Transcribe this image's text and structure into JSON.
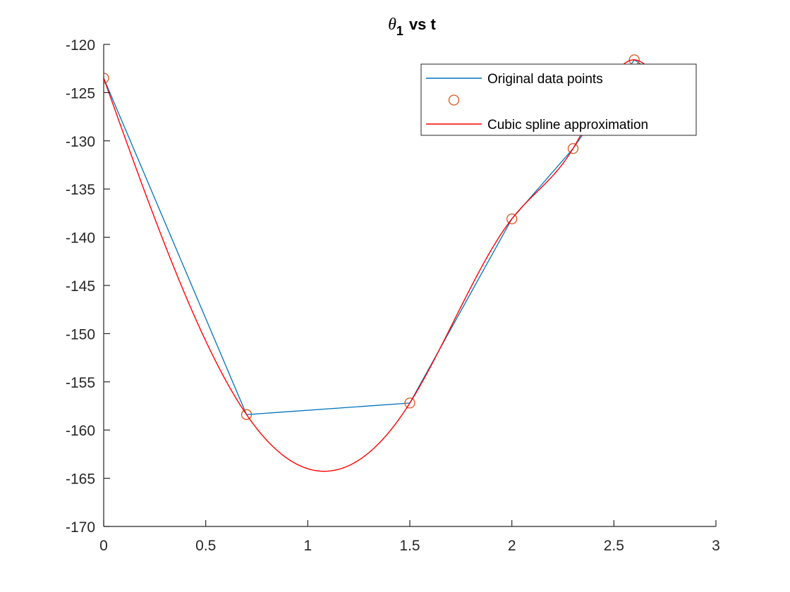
{
  "chart_data": {
    "type": "line",
    "title": {
      "symbol": "θ",
      "subscript": "1",
      "rest": "vs t"
    },
    "xlabel": "",
    "ylabel": "",
    "xlim": [
      0,
      3
    ],
    "ylim": [
      -170,
      -120
    ],
    "xticks": [
      0,
      0.5,
      1,
      1.5,
      2,
      2.5,
      3
    ],
    "yticks": [
      -120,
      -125,
      -130,
      -135,
      -140,
      -145,
      -150,
      -155,
      -160,
      -165,
      -170
    ],
    "xtick_labels": [
      "0",
      "0.5",
      "1",
      "1.5",
      "2",
      "2.5",
      "3"
    ],
    "ytick_labels": [
      "-120",
      "-125",
      "-130",
      "-135",
      "-140",
      "-145",
      "-150",
      "-155",
      "-160",
      "-165",
      "-170"
    ],
    "grid": false,
    "legend_position": "top-right",
    "series": [
      {
        "name": "Original data points",
        "style": "line",
        "color": "#0072BD",
        "x": [
          0,
          0.7,
          1.5,
          2.0,
          2.3,
          2.6,
          2.7
        ],
        "y": [
          -123.5,
          -158.4,
          -157.2,
          -138.1,
          -130.8,
          -121.6,
          -123.0
        ]
      },
      {
        "name": "",
        "style": "markers",
        "marker": "circle",
        "color": "#D95319",
        "x": [
          0,
          0.7,
          1.5,
          2.0,
          2.3,
          2.6,
          2.7
        ],
        "y": [
          -123.5,
          -158.4,
          -157.2,
          -138.1,
          -130.8,
          -121.6,
          -123.0
        ]
      },
      {
        "name": "Cubic spline approximation",
        "style": "line",
        "color": "#FF0000",
        "x": [
          0,
          0.7,
          1.06,
          1.5,
          2.0,
          2.3,
          2.6,
          2.7
        ],
        "y": [
          -123.5,
          -158.4,
          -166.0,
          -157.2,
          -138.1,
          -130.8,
          -121.6,
          -123.0
        ]
      }
    ]
  }
}
